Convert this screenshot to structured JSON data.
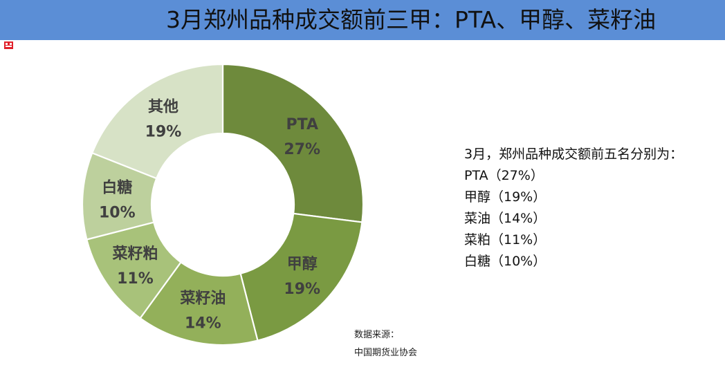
{
  "title": "3月郑州品种成交额前三甲：PTA、甲醇、菜籽油",
  "colors": {
    "title_bar": "#5b8ed6",
    "logo": "#e0202a"
  },
  "chart_data": {
    "type": "pie",
    "title": "",
    "categories": [
      "PTA",
      "甲醇",
      "菜籽油",
      "菜籽粕",
      "白糖",
      "其他"
    ],
    "values": [
      27,
      19,
      14,
      11,
      10,
      19
    ],
    "labels": [
      "27%",
      "19%",
      "14%",
      "11%",
      "10%",
      "19%"
    ],
    "colors": [
      "#6e8a3c",
      "#7a9a42",
      "#93b05a",
      "#a8c27a",
      "#bdd09d",
      "#d7e2c6"
    ],
    "donut": true,
    "legend": "none"
  },
  "summary": {
    "heading": "3月，郑州品种成交额前五名分别为：",
    "items": [
      "PTA（27%）",
      "甲醇（19%）",
      "菜油（14%）",
      "菜粕（11%）",
      "白糖（10%）"
    ]
  },
  "source": {
    "label": "数据来源：",
    "value": "中国期货业协会"
  }
}
